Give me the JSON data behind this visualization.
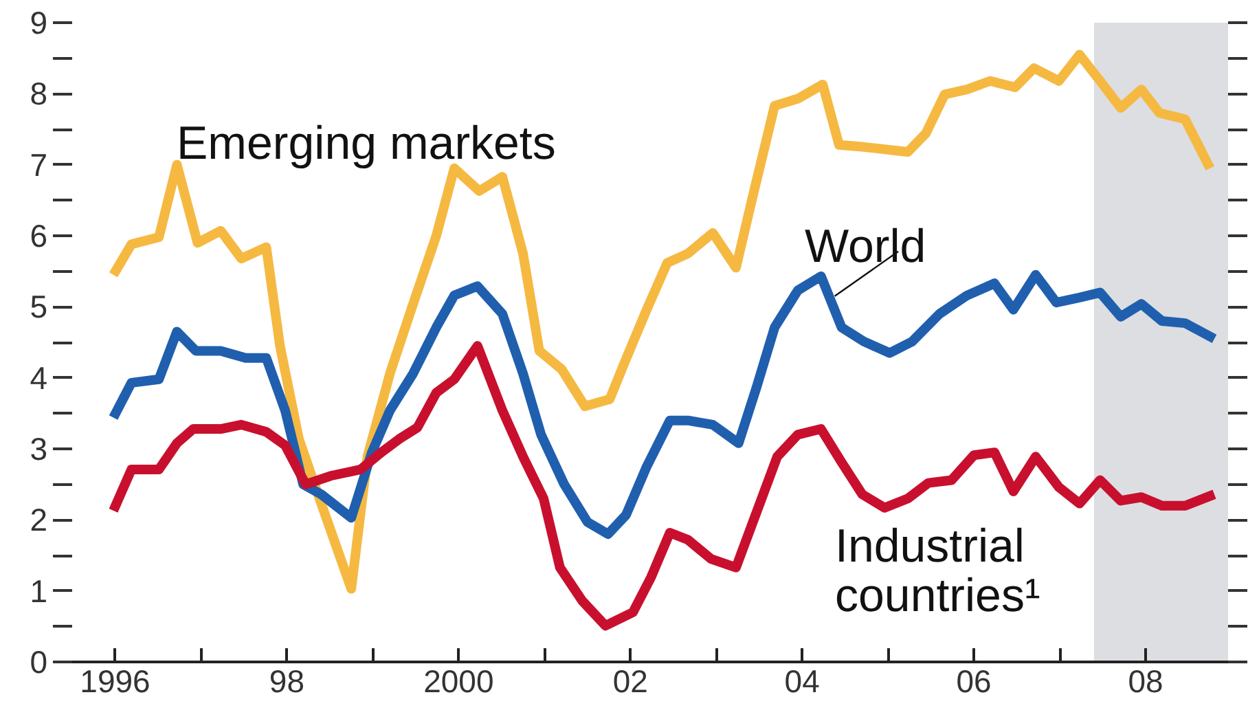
{
  "chart_data": {
    "type": "line",
    "xlim": [
      1995.5,
      2008.96
    ],
    "ylim": [
      0,
      9
    ],
    "xticks": [
      {
        "value": 1996,
        "label": "1996"
      },
      {
        "value": 1997,
        "label": null
      },
      {
        "value": 1998,
        "label": "98"
      },
      {
        "value": 1999,
        "label": null
      },
      {
        "value": 2000,
        "label": "2000"
      },
      {
        "value": 2001,
        "label": null
      },
      {
        "value": 2002,
        "label": "02"
      },
      {
        "value": 2003,
        "label": null
      },
      {
        "value": 2004,
        "label": "04"
      },
      {
        "value": 2005,
        "label": null
      },
      {
        "value": 2006,
        "label": "06"
      },
      {
        "value": 2007,
        "label": null
      },
      {
        "value": 2008,
        "label": "08"
      }
    ],
    "yticks": [
      0,
      {
        "value": 0.5,
        "label": null
      },
      1,
      {
        "value": 1.5,
        "label": null
      },
      2,
      {
        "value": 2.5,
        "label": null
      },
      3,
      {
        "value": 3.5,
        "label": null
      },
      4,
      {
        "value": 4.5,
        "label": null
      },
      5,
      {
        "value": 5.5,
        "label": null
      },
      6,
      {
        "value": 6.5,
        "label": null
      },
      7,
      {
        "value": 7.5,
        "label": null
      },
      8,
      {
        "value": 8.5,
        "label": null
      },
      9
    ],
    "grid": false,
    "legend": false,
    "marker": "none",
    "line_style": "solid",
    "bands": [
      {
        "axis": "x",
        "from": 2007.4,
        "to": 2008.96,
        "color": "#dcdee2"
      }
    ],
    "series": [
      {
        "name": "Emerging markets",
        "color": "#f5b942",
        "x": [
          1995.98,
          1996.19,
          1996.51,
          1996.72,
          1996.96,
          1997.23,
          1997.47,
          1997.76,
          1997.92,
          1998.14,
          1998.4,
          1998.75,
          1998.94,
          1999.2,
          1999.47,
          1999.74,
          1999.95,
          2000.24,
          2000.51,
          2000.75,
          2000.94,
          2001.2,
          2001.47,
          2001.76,
          2001.92,
          2002.19,
          2002.43,
          2002.67,
          2002.96,
          2003.23,
          2003.42,
          2003.68,
          2003.95,
          2004.24,
          2004.43,
          2004.72,
          2005.23,
          2005.44,
          2005.66,
          2005.92,
          2006.19,
          2006.48,
          2006.7,
          2006.99,
          2007.23,
          2007.47,
          2007.71,
          2007.95,
          2008.16,
          2008.46,
          2008.75
        ],
        "values": [
          5.45,
          5.88,
          5.98,
          7.0,
          5.9,
          6.07,
          5.68,
          5.84,
          4.45,
          3.14,
          2.23,
          1.03,
          2.9,
          4.06,
          5.04,
          6.0,
          6.95,
          6.63,
          6.83,
          5.75,
          4.38,
          4.12,
          3.6,
          3.7,
          4.18,
          4.96,
          5.62,
          5.75,
          6.04,
          5.55,
          6.53,
          7.83,
          7.93,
          8.13,
          7.28,
          7.25,
          7.18,
          7.44,
          7.99,
          8.06,
          8.18,
          8.09,
          8.36,
          8.18,
          8.55,
          8.18,
          7.8,
          8.06,
          7.73,
          7.64,
          6.95
        ]
      },
      {
        "name": "World",
        "color": "#1f5fae",
        "x": [
          1995.98,
          1996.19,
          1996.51,
          1996.72,
          1996.94,
          1997.23,
          1997.52,
          1997.76,
          1997.98,
          1998.19,
          1998.4,
          1998.75,
          1998.99,
          1999.2,
          1999.47,
          1999.74,
          1999.95,
          2000.22,
          2000.51,
          2000.75,
          2000.96,
          2001.23,
          2001.5,
          2001.74,
          2001.95,
          2002.19,
          2002.46,
          2002.67,
          2002.96,
          2003.26,
          2003.47,
          2003.68,
          2003.95,
          2004.22,
          2004.46,
          2004.72,
          2005.02,
          2005.28,
          2005.6,
          2005.92,
          2006.24,
          2006.46,
          2006.72,
          2006.96,
          2007.23,
          2007.47,
          2007.71,
          2007.95,
          2008.19,
          2008.46,
          2008.8
        ],
        "values": [
          3.44,
          3.93,
          3.98,
          4.65,
          4.38,
          4.38,
          4.28,
          4.28,
          3.54,
          2.5,
          2.36,
          2.03,
          2.95,
          3.54,
          4.06,
          4.71,
          5.16,
          5.29,
          4.9,
          4.06,
          3.2,
          2.5,
          1.97,
          1.8,
          2.07,
          2.75,
          3.4,
          3.4,
          3.34,
          3.08,
          3.87,
          4.71,
          5.23,
          5.43,
          4.71,
          4.51,
          4.35,
          4.51,
          4.9,
          5.16,
          5.33,
          4.96,
          5.45,
          5.06,
          5.13,
          5.2,
          4.86,
          5.04,
          4.8,
          4.77,
          4.55
        ]
      },
      {
        "name": "Industrial countries¹",
        "color": "#c8102e",
        "x": [
          1995.98,
          1996.19,
          1996.51,
          1996.72,
          1996.91,
          1997.23,
          1997.47,
          1997.76,
          1997.98,
          1998.22,
          1998.51,
          1998.86,
          1999.1,
          1999.31,
          1999.52,
          1999.74,
          1999.95,
          2000.22,
          2000.51,
          2000.75,
          2000.99,
          2001.18,
          2001.44,
          2001.71,
          2002.03,
          2002.24,
          2002.46,
          2002.67,
          2002.94,
          2003.23,
          2003.47,
          2003.71,
          2003.95,
          2004.22,
          2004.46,
          2004.7,
          2004.96,
          2005.23,
          2005.47,
          2005.74,
          2006.0,
          2006.24,
          2006.46,
          2006.72,
          2006.99,
          2007.23,
          2007.47,
          2007.71,
          2007.95,
          2008.19,
          2008.46,
          2008.8
        ],
        "values": [
          2.13,
          2.71,
          2.71,
          3.08,
          3.28,
          3.28,
          3.34,
          3.24,
          3.05,
          2.5,
          2.62,
          2.71,
          2.95,
          3.14,
          3.3,
          3.79,
          3.98,
          4.45,
          3.54,
          2.89,
          2.3,
          1.33,
          0.86,
          0.51,
          0.7,
          1.19,
          1.82,
          1.72,
          1.45,
          1.33,
          2.11,
          2.89,
          3.2,
          3.28,
          2.81,
          2.36,
          2.17,
          2.3,
          2.52,
          2.56,
          2.91,
          2.95,
          2.4,
          2.89,
          2.46,
          2.23,
          2.56,
          2.27,
          2.32,
          2.2,
          2.2,
          2.36
        ]
      }
    ]
  }
}
